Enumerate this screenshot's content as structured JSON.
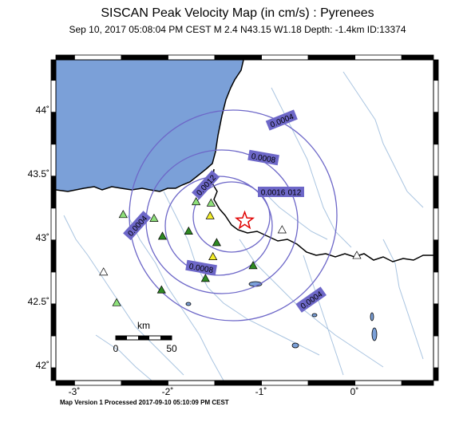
{
  "header": {
    "title": "SISCAN Peak Velocity Map (in cm/s) : Pyrenees",
    "subtitle": "Sep 10, 2017 05:08:04 PM CEST   M 2.4   N43.15 W1.18   Depth: -1.4km   ID:13374"
  },
  "footer": "Map Version 1 Processed 2017-09-10 05:10:09 PM CEST",
  "axes": {
    "lon_ticks": [
      "-3˚",
      "-2˚",
      "-1˚",
      "0˚"
    ],
    "lat_ticks": [
      "44˚",
      "43.5˚",
      "43˚",
      "42.5˚",
      "42˚"
    ]
  },
  "scale_bar": {
    "unit": "km",
    "labels": [
      "0",
      "50"
    ]
  },
  "contours": [
    {
      "label": "0.0004"
    },
    {
      "label": "0.0004"
    },
    {
      "label": "0.0004"
    },
    {
      "label": "0.0008"
    },
    {
      "label": "0.0008"
    },
    {
      "label": "0.0012"
    },
    {
      "label": "0.0012"
    },
    {
      "label": "0.0016"
    }
  ],
  "colors": {
    "sea": "#7ba0d8",
    "contour": "#6d67c8",
    "label_bg": "#6d67c8",
    "river": "#a9c4e0",
    "star": "#e00000",
    "station_green_dark": "#2e8a23",
    "station_green_light": "#8ee07a",
    "station_yellow": "#f4ee2a",
    "station_white": "#ffffff"
  },
  "epicenter": {
    "lat": 43.15,
    "lon": -1.18,
    "icon": "star-icon"
  },
  "stations": [
    {
      "lon": -2.48,
      "lat": 43.2,
      "color": "light-green"
    },
    {
      "lon": -2.15,
      "lat": 43.17,
      "color": "light-green"
    },
    {
      "lon": -1.7,
      "lat": 43.3,
      "color": "light-green"
    },
    {
      "lon": -1.54,
      "lat": 43.29,
      "color": "light-green"
    },
    {
      "lon": -1.55,
      "lat": 43.19,
      "color": "yellow"
    },
    {
      "lon": -2.06,
      "lat": 43.03,
      "color": "dark-green"
    },
    {
      "lon": -1.78,
      "lat": 43.07,
      "color": "dark-green"
    },
    {
      "lon": -1.48,
      "lat": 42.98,
      "color": "dark-green"
    },
    {
      "lon": -1.52,
      "lat": 42.87,
      "color": "yellow"
    },
    {
      "lon": -1.6,
      "lat": 42.7,
      "color": "dark-green"
    },
    {
      "lon": -1.09,
      "lat": 42.8,
      "color": "dark-green"
    },
    {
      "lon": -2.07,
      "lat": 42.61,
      "color": "dark-green"
    },
    {
      "lon": -2.55,
      "lat": 42.51,
      "color": "light-green"
    },
    {
      "lon": -2.69,
      "lat": 42.75,
      "color": "white"
    },
    {
      "lon": -0.78,
      "lat": 43.08,
      "color": "white"
    },
    {
      "lon": 0.02,
      "lat": 42.88,
      "color": "white"
    }
  ]
}
